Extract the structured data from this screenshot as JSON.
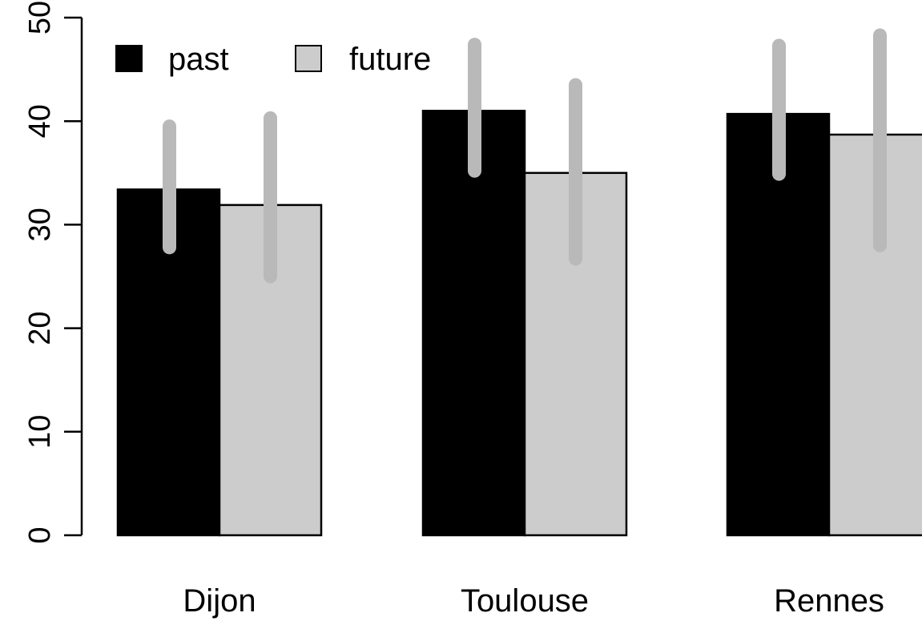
{
  "chart_data": {
    "type": "bar",
    "title": "",
    "xlabel": "",
    "ylabel": "",
    "categories": [
      "Dijon",
      "Toulouse",
      "Rennes"
    ],
    "series": [
      {
        "name": "past",
        "color": "#000000",
        "values": [
          33.4,
          41.0,
          40.7
        ],
        "error_low": [
          27.8,
          35.2,
          34.9
        ],
        "error_high": [
          39.5,
          47.4,
          47.3
        ]
      },
      {
        "name": "future",
        "color": "#cccccc",
        "values": [
          31.9,
          35.0,
          38.7
        ],
        "error_low": [
          25.0,
          26.7,
          28.0
        ],
        "error_high": [
          40.3,
          43.5,
          48.3
        ]
      }
    ],
    "ylim": [
      0,
      50
    ],
    "yticks": [
      "0",
      "10",
      "20",
      "30",
      "40",
      "50"
    ],
    "error_bar_color": "#b9b9b9",
    "legend_position": "top-left",
    "grid": false
  }
}
